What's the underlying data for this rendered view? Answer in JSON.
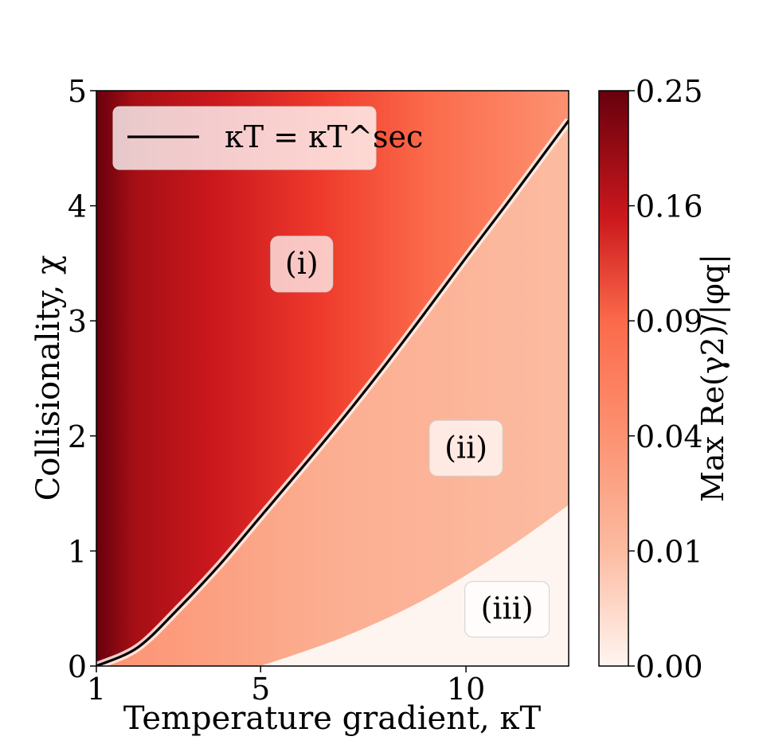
{
  "chart_data": {
    "type": "heatmap",
    "xlabel": "Temperature gradient, κT",
    "ylabel": "Collisionality, χ",
    "xlim": [
      1,
      12.5
    ],
    "ylim": [
      0,
      5
    ],
    "x_ticks": [
      {
        "value": 1,
        "label": "1"
      },
      {
        "value": 5,
        "label": "5"
      },
      {
        "value": 10,
        "label": "10"
      }
    ],
    "y_ticks": [
      {
        "value": 0,
        "label": "0"
      },
      {
        "value": 1,
        "label": "1"
      },
      {
        "value": 2,
        "label": "2"
      },
      {
        "value": 3,
        "label": "3"
      },
      {
        "value": 4,
        "label": "4"
      },
      {
        "value": 5,
        "label": "5"
      }
    ],
    "colorbar": {
      "label": "Max Re(γ2)/|φq|",
      "ticks": [
        "0.00",
        "0.01",
        "0.04",
        "0.09",
        "0.16",
        "0.25"
      ],
      "colormap": "Reds",
      "colors": [
        "#fff5f0",
        "#fcbba1",
        "#fb6a4a",
        "#ef3b2c",
        "#cb181d",
        "#67000d"
      ]
    },
    "series": [
      {
        "name": "κT = κT^sec",
        "color": "#000000",
        "x": [
          1,
          2,
          3,
          4,
          5,
          6,
          7,
          8,
          9,
          10,
          11,
          12,
          12.5
        ],
        "y": [
          0,
          0.16,
          0.5,
          0.88,
          1.3,
          1.72,
          2.15,
          2.6,
          3.07,
          3.55,
          4.02,
          4.5,
          4.74
        ]
      }
    ],
    "regions": [
      {
        "label": "(i)",
        "x": 6,
        "y": 3.5
      },
      {
        "label": "(ii)",
        "x": 10,
        "y": 1.9
      },
      {
        "label": "(iii)",
        "x": 11,
        "y": 0.5
      }
    ],
    "legend": {
      "placement": "top-left",
      "entries": [
        "κT = κT^sec"
      ]
    },
    "grid": false
  }
}
